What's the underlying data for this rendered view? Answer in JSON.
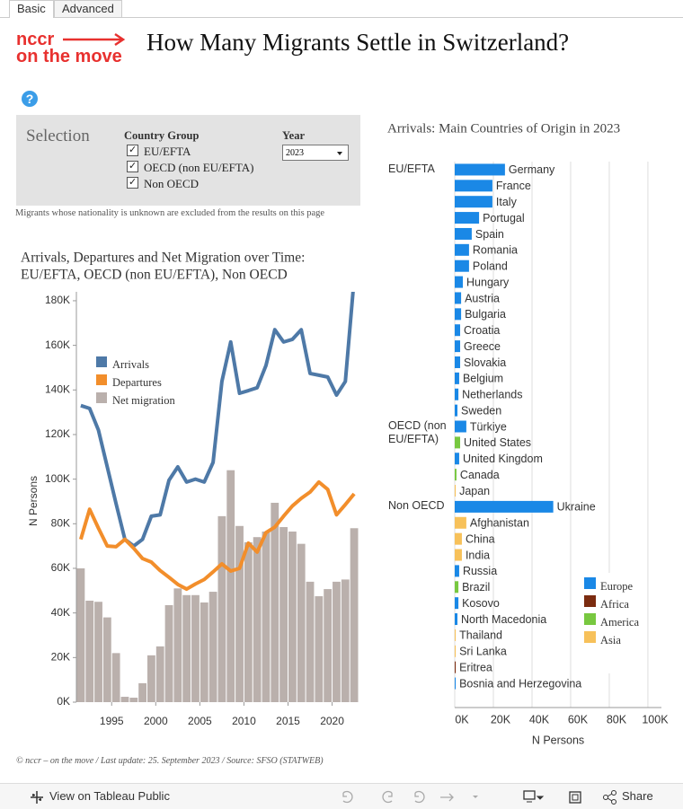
{
  "tabs": [
    "Basic",
    "Advanced"
  ],
  "logo": [
    "nccr",
    "on the move"
  ],
  "title": "How Many Migrants Settle in Switzerland?",
  "help": "?",
  "filters": {
    "heading": "Selection",
    "country_group": {
      "label": "Country Group",
      "options": [
        "EU/EFTA",
        "OECD (non EU/EFTA)",
        "Non OECD"
      ]
    },
    "year": {
      "label": "Year",
      "value": "2023"
    }
  },
  "note": "Migrants whose nationality is unknown are excluded from the results on this page",
  "chart_data": [
    {
      "type": "combo",
      "title": [
        "Arrivals, Departures and Net Migration over Time:",
        "EU/EFTA, OECD (non EU/EFTA), Non OECD"
      ],
      "y_label": "N Persons",
      "x": [
        1991,
        1992,
        1993,
        1994,
        1995,
        1996,
        1997,
        1998,
        1999,
        2000,
        2001,
        2002,
        2003,
        2004,
        2005,
        2006,
        2007,
        2008,
        2009,
        2010,
        2011,
        2012,
        2013,
        2014,
        2015,
        2016,
        2017,
        2018,
        2019,
        2020,
        2021,
        2022
      ],
      "xlim": [
        1991,
        2023
      ],
      "xticks": [
        1995,
        2000,
        2005,
        2010,
        2015,
        2020
      ],
      "ylim": [
        0,
        184000
      ],
      "yticks": [
        {
          "value": 0,
          "label": "0K"
        },
        {
          "value": 20000,
          "label": "20K"
        },
        {
          "value": 40000,
          "label": "40K"
        },
        {
          "value": 60000,
          "label": "60K"
        },
        {
          "value": 80000,
          "label": "80K"
        },
        {
          "value": 100000,
          "label": "100K"
        },
        {
          "value": 120000,
          "label": "120K"
        },
        {
          "value": 140000,
          "label": "140K"
        },
        {
          "value": 160000,
          "label": "160K"
        },
        {
          "value": 180000,
          "label": "180K"
        }
      ],
      "series": [
        {
          "name": "Arrivals",
          "type": "line",
          "color": "#4e79a7",
          "values": [
            133000,
            131700,
            122000,
            105500,
            89000,
            73000,
            70000,
            73000,
            83400,
            84000,
            99500,
            105500,
            98700,
            100000,
            98700,
            107500,
            143800,
            161500,
            138500,
            139700,
            141000,
            151000,
            167000,
            161500,
            162700,
            167000,
            147400,
            146600,
            145800,
            137700,
            143800,
            190000
          ]
        },
        {
          "name": "Departures",
          "type": "line",
          "color": "#f28e2b",
          "values": [
            73000,
            86500,
            78000,
            70000,
            69700,
            73000,
            69000,
            64400,
            62800,
            59000,
            56000,
            52800,
            50700,
            53000,
            55000,
            58400,
            62000,
            58800,
            60000,
            71300,
            67300,
            76000,
            78500,
            83400,
            88000,
            91400,
            94200,
            98700,
            95400,
            84000,
            88600,
            93400
          ]
        },
        {
          "name": "Net migration",
          "type": "bar",
          "color": "#bab0ac",
          "values": [
            60000,
            45500,
            45000,
            38000,
            22000,
            2400,
            2000,
            8500,
            21000,
            25000,
            43500,
            51000,
            48000,
            48000,
            44700,
            49500,
            83400,
            104000,
            79000,
            71700,
            74000,
            76500,
            89400,
            78500,
            76500,
            71000,
            54000,
            47500,
            50700,
            54000,
            55000,
            78000
          ]
        }
      ]
    },
    {
      "type": "bar",
      "orientation": "horizontal",
      "title": "Arrivals: Main Countries of Origin in 2023",
      "x_label": "N Persons",
      "groups": [
        "EU/EFTA",
        "OECD (non EU/EFTA)",
        "Non OECD"
      ],
      "group": [
        0,
        0,
        0,
        0,
        0,
        0,
        0,
        0,
        0,
        0,
        0,
        0,
        0,
        0,
        0,
        0,
        1,
        1,
        1,
        1,
        1,
        2,
        2,
        2,
        2,
        2,
        2,
        2,
        2,
        2,
        2,
        2,
        2
      ],
      "categories": [
        "Germany",
        "France",
        "Italy",
        "Portugal",
        "Spain",
        "Romania",
        "Poland",
        "Hungary",
        "Austria",
        "Bulgaria",
        "Croatia",
        "Greece",
        "Slovakia",
        "Belgium",
        "Netherlands",
        "Sweden",
        "Türkiye",
        "United States",
        "United Kingdom",
        "Canada",
        "Japan",
        "Ukraine",
        "Afghanistan",
        "China",
        "India",
        "Russia",
        "Brazil",
        "Kosovo",
        "North Macedonia",
        "Thailand",
        "Sri Lanka",
        "Eritrea",
        "Bosnia and Herzegovina"
      ],
      "values": [
        26000,
        19500,
        19500,
        12600,
        8800,
        7400,
        7400,
        4200,
        3300,
        3300,
        2800,
        2800,
        2800,
        2300,
        1900,
        1400,
        6000,
        2800,
        2300,
        900,
        500,
        51000,
        6000,
        3700,
        3700,
        2300,
        1900,
        1900,
        1400,
        500,
        500,
        500,
        500
      ],
      "region": [
        0,
        0,
        0,
        0,
        0,
        0,
        0,
        0,
        0,
        0,
        0,
        0,
        0,
        0,
        0,
        0,
        0,
        2,
        0,
        2,
        3,
        0,
        3,
        3,
        3,
        0,
        2,
        0,
        0,
        3,
        3,
        1,
        0
      ],
      "legend": [
        {
          "name": "Europe",
          "color": "#1a88e6"
        },
        {
          "name": "Africa",
          "color": "#7b2c10"
        },
        {
          "name": "America",
          "color": "#78c840"
        },
        {
          "name": "Asia",
          "color": "#f7c15a"
        }
      ],
      "xlim": [
        0,
        107000
      ],
      "xticks": [
        {
          "value": 0,
          "label": "0K"
        },
        {
          "value": 20000,
          "label": "20K"
        },
        {
          "value": 40000,
          "label": "40K"
        },
        {
          "value": 60000,
          "label": "60K"
        },
        {
          "value": 80000,
          "label": "80K"
        },
        {
          "value": 100000,
          "label": "100K"
        }
      ],
      "grid": true
    }
  ],
  "footer": "© nccr – on the move / Last update: 25. September 2023 / Source: SFSO (STATWEB)",
  "toolbar": {
    "view": "View on Tableau Public",
    "share": "Share"
  }
}
